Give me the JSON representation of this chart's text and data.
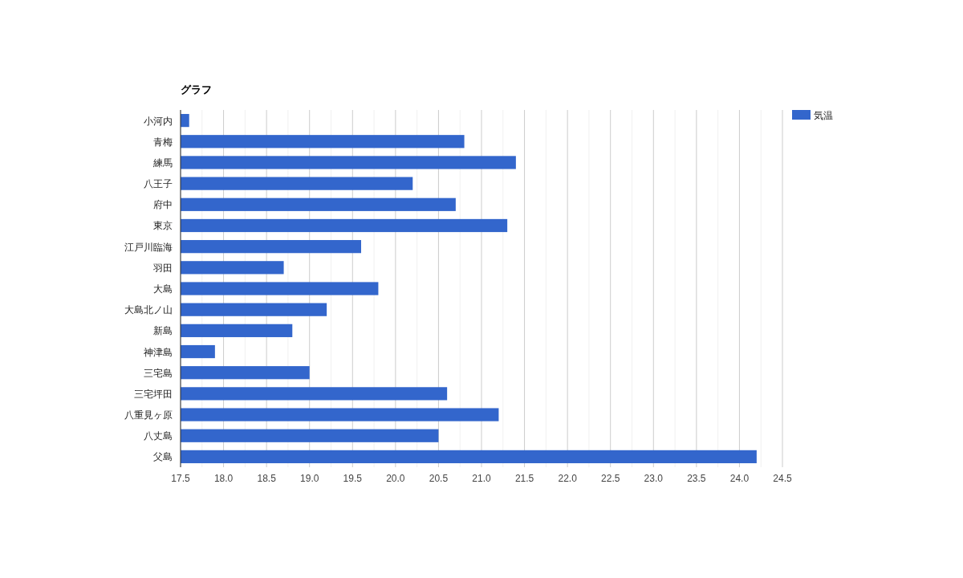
{
  "chart_data": {
    "type": "bar",
    "orientation": "horizontal",
    "title": "グラフ",
    "categories": [
      "小河内",
      "青梅",
      "練馬",
      "八王子",
      "府中",
      "東京",
      "江戸川臨海",
      "羽田",
      "大島",
      "大島北ノ山",
      "新島",
      "神津島",
      "三宅島",
      "三宅坪田",
      "八重見ヶ原",
      "八丈島",
      "父島"
    ],
    "series": [
      {
        "name": "気温",
        "color": "#3366cc",
        "values": [
          17.6,
          20.8,
          21.4,
          20.2,
          20.7,
          21.3,
          19.6,
          18.7,
          19.8,
          19.2,
          18.8,
          17.9,
          19.0,
          20.6,
          21.2,
          20.5,
          24.2
        ]
      }
    ],
    "xlim": [
      17.5,
      24.5
    ],
    "xticks": [
      17.5,
      {
        "value": 18,
        "label": "18.0"
      },
      18.5,
      {
        "value": 19,
        "label": "19.0"
      },
      19.5,
      {
        "value": 20,
        "label": "20.0"
      },
      20.5,
      {
        "value": 21,
        "label": "21.0"
      },
      21.5,
      {
        "value": 22,
        "label": "22.0"
      },
      22.5,
      {
        "value": 23,
        "label": "23.0"
      },
      23.5,
      {
        "value": 24,
        "label": "24.0"
      },
      24.5
    ],
    "grid": "x",
    "legend": "top right"
  }
}
